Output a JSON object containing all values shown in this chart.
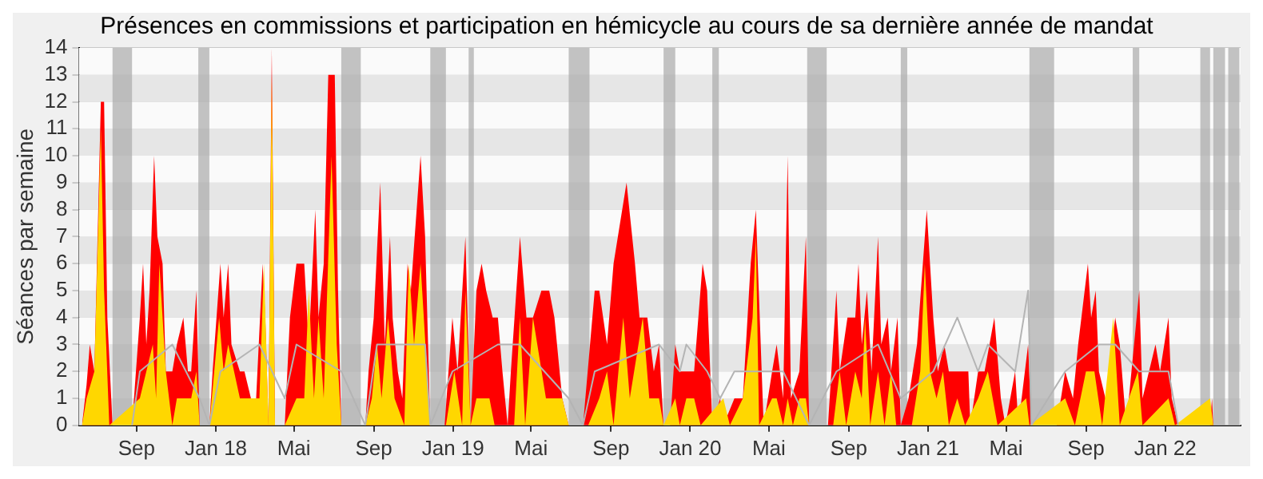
{
  "chart_data": {
    "type": "area",
    "title": "Présences en commissions et participation en hémicycle au cours de sa dernière année de mandat",
    "ylabel": "Séances par semaine",
    "xlim": [
      "2017-06-04",
      "2022-04-27"
    ],
    "ylim": [
      0,
      14
    ],
    "yticks": [
      0,
      1,
      2,
      3,
      4,
      5,
      6,
      7,
      8,
      9,
      10,
      11,
      12,
      13,
      14
    ],
    "xticks": [
      {
        "value": "2017-09-01",
        "label": "Sep"
      },
      {
        "value": "2018-01-01",
        "label": "Jan 18"
      },
      {
        "value": "2018-05-01",
        "label": "Mai"
      },
      {
        "value": "2018-09-01",
        "label": "Sep"
      },
      {
        "value": "2019-01-01",
        "label": "Jan 19"
      },
      {
        "value": "2019-05-01",
        "label": "Mai"
      },
      {
        "value": "2019-09-01",
        "label": "Sep"
      },
      {
        "value": "2020-01-01",
        "label": "Jan 20"
      },
      {
        "value": "2020-05-01",
        "label": "Mai"
      },
      {
        "value": "2020-09-01",
        "label": "Sep"
      },
      {
        "value": "2021-01-01",
        "label": "Jan 21"
      },
      {
        "value": "2021-05-01",
        "label": "Mai"
      },
      {
        "value": "2021-09-01",
        "label": "Sep"
      },
      {
        "value": "2022-01-01",
        "label": "Jan 22"
      }
    ],
    "grid": true,
    "legend": false,
    "bands": [
      {
        "axis": "x",
        "from": "2017-07-26",
        "to": "2017-08-25",
        "color": "#aaaaaa"
      },
      {
        "axis": "x",
        "from": "2017-12-05",
        "to": "2017-12-22",
        "color": "#aaaaaa"
      },
      {
        "axis": "x",
        "from": "2018-07-13",
        "to": "2018-08-12",
        "color": "#aaaaaa"
      },
      {
        "axis": "x",
        "from": "2018-11-27",
        "to": "2018-12-21",
        "color": "#aaaaaa"
      },
      {
        "axis": "x",
        "from": "2019-01-25",
        "to": "2019-02-02",
        "color": "#aaaaaa"
      },
      {
        "axis": "x",
        "from": "2019-06-28",
        "to": "2019-07-30",
        "color": "#aaaaaa"
      },
      {
        "axis": "x",
        "from": "2019-11-21",
        "to": "2019-12-09",
        "color": "#aaaaaa"
      },
      {
        "axis": "x",
        "from": "2020-02-04",
        "to": "2020-02-14",
        "color": "#aaaaaa"
      },
      {
        "axis": "x",
        "from": "2020-06-29",
        "to": "2020-07-29",
        "color": "#aaaaaa"
      },
      {
        "axis": "x",
        "from": "2020-11-20",
        "to": "2020-11-30",
        "color": "#aaaaaa"
      },
      {
        "axis": "x",
        "from": "2021-06-06",
        "to": "2021-07-14",
        "color": "#aaaaaa"
      },
      {
        "axis": "x",
        "from": "2021-11-12",
        "to": "2021-11-22",
        "color": "#aaaaaa"
      },
      {
        "axis": "x",
        "from": "2022-02-24",
        "to": "2022-03-11",
        "color": "#aaaaaa"
      },
      {
        "axis": "x",
        "from": "2022-03-16",
        "to": "2022-04-03",
        "color": "#aaaaaa"
      },
      {
        "axis": "x",
        "from": "2022-04-08",
        "to": "2022-04-25",
        "color": "#aaaaaa"
      }
    ],
    "series": [
      {
        "type": "area",
        "color": "#ff0000",
        "x": [
          "2017-06-09",
          "2017-06-16",
          "2017-06-21",
          "2017-06-28",
          "2017-07-03",
          "2017-07-08",
          "2017-07-13",
          "2017-07-18",
          "2017-07-26",
          "2017-08-25",
          "2017-09-06",
          "2017-09-11",
          "2017-09-16",
          "2017-09-21",
          "2017-09-28",
          "2017-10-03",
          "2017-10-11",
          "2017-10-16",
          "2017-10-26",
          "2017-11-02",
          "2017-11-12",
          "2017-11-19",
          "2017-11-24",
          "2017-12-02",
          "2017-12-07",
          "2017-12-22",
          "2017-12-27",
          "2018-01-08",
          "2018-01-13",
          "2018-01-20",
          "2018-01-25",
          "2018-02-07",
          "2018-02-14",
          "2018-02-24",
          "2018-03-04",
          "2018-03-14",
          "2018-03-18",
          "2018-03-23",
          "2018-03-28",
          "2018-04-02",
          "2018-04-17",
          "2018-04-25",
          "2018-05-05",
          "2018-05-17",
          "2018-05-24",
          "2018-06-03",
          "2018-06-08",
          "2018-06-16",
          "2018-06-23",
          "2018-07-03",
          "2018-07-08",
          "2018-07-13",
          "2018-08-19",
          "2018-08-24",
          "2018-09-01",
          "2018-09-11",
          "2018-09-18",
          "2018-09-26",
          "2018-09-30",
          "2018-10-08",
          "2018-10-15",
          "2018-10-23",
          "2018-10-28",
          "2018-11-12",
          "2018-11-19",
          "2018-11-27",
          "2018-12-19",
          "2018-12-31",
          "2019-01-08",
          "2019-01-20",
          "2019-01-28",
          "2019-02-06",
          "2019-02-14",
          "2019-02-21",
          "2019-03-03",
          "2019-03-11",
          "2019-03-18",
          "2019-03-26",
          "2019-03-31",
          "2019-04-14",
          "2019-04-24",
          "2019-05-04",
          "2019-05-17",
          "2019-05-29",
          "2019-06-06",
          "2019-06-18",
          "2019-06-28",
          "2019-07-20",
          "2019-08-07",
          "2019-08-14",
          "2019-08-26",
          "2019-09-05",
          "2019-09-25",
          "2019-10-08",
          "2019-10-15",
          "2019-10-27",
          "2019-11-06",
          "2019-11-14",
          "2019-11-21",
          "2019-12-01",
          "2019-12-09",
          "2019-12-16",
          "2020-01-07",
          "2020-01-20",
          "2020-01-27",
          "2020-02-04",
          "2020-02-16",
          "2020-02-21",
          "2020-03-09",
          "2020-03-22",
          "2020-04-03",
          "2020-04-11",
          "2020-04-23",
          "2020-05-06",
          "2020-05-13",
          "2020-05-23",
          "2020-05-30",
          "2020-06-04",
          "2020-06-17",
          "2020-06-27",
          "2020-07-02",
          "2020-07-31",
          "2020-08-13",
          "2020-08-18",
          "2020-08-30",
          "2020-09-11",
          "2020-09-16",
          "2020-09-21",
          "2020-09-29",
          "2020-10-06",
          "2020-10-16",
          "2020-10-21",
          "2020-10-31",
          "2020-11-05",
          "2020-11-15",
          "2020-11-20",
          "2020-12-02",
          "2020-12-15",
          "2020-12-30",
          "2021-01-09",
          "2021-01-16",
          "2021-01-26",
          "2021-02-02",
          "2021-02-15",
          "2021-03-04",
          "2021-03-07",
          "2021-03-19",
          "2021-03-29",
          "2021-04-13",
          "2021-04-23",
          "2021-04-30",
          "2021-05-15",
          "2021-05-20",
          "2021-06-04",
          "2021-06-09",
          "2021-07-18",
          "2021-07-31",
          "2021-08-12",
          "2021-08-20",
          "2021-09-04",
          "2021-09-09",
          "2021-09-16",
          "2021-09-21",
          "2021-10-01",
          "2021-10-16",
          "2021-10-23",
          "2021-11-02",
          "2021-11-22",
          "2021-11-27",
          "2021-12-17",
          "2021-12-24",
          "2022-01-06",
          "2022-01-11",
          "2022-01-21",
          "2022-03-11",
          "2022-03-14",
          "2022-03-16",
          "2022-04-25"
        ],
        "values": [
          0,
          1.5,
          3,
          2,
          7,
          12,
          12,
          4,
          0,
          0,
          4,
          6,
          3,
          5,
          10,
          7,
          6,
          2,
          2,
          3,
          4,
          2,
          2,
          5,
          0,
          0,
          2,
          6,
          4,
          6,
          3,
          2,
          2,
          1,
          1,
          6,
          4,
          0,
          14,
          0,
          0,
          4,
          6,
          6,
          3,
          8,
          4,
          6,
          13,
          13,
          5,
          0,
          0,
          2,
          4,
          9,
          3,
          7,
          4,
          2,
          1,
          6,
          5,
          10,
          7,
          0,
          0,
          4,
          2,
          7,
          0,
          5,
          6,
          5,
          4,
          4,
          2,
          0,
          2,
          7,
          4,
          4,
          5,
          5,
          4,
          1,
          0,
          0,
          5,
          5,
          3,
          6,
          9,
          6,
          4,
          4,
          2,
          3,
          0,
          0,
          3,
          2,
          2,
          6,
          5,
          0,
          1,
          0,
          1,
          1,
          6,
          8,
          0,
          2,
          3,
          1,
          10,
          1,
          2,
          7,
          0,
          0,
          5,
          2,
          4,
          4,
          6,
          3,
          5,
          2,
          7,
          3,
          4,
          2,
          4,
          0,
          1,
          3,
          8,
          4,
          2,
          3,
          2,
          2,
          2,
          0,
          2,
          2,
          4,
          1,
          0,
          2,
          0,
          3,
          0,
          0,
          2,
          1,
          3,
          6,
          4,
          5,
          2,
          1,
          4,
          3,
          0,
          5,
          1,
          3,
          2,
          4,
          1,
          0,
          0,
          1,
          0,
          0
        ]
      },
      {
        "type": "area",
        "color": "#ffd700",
        "x": [
          "2017-06-09",
          "2017-06-16",
          "2017-06-28",
          "2017-07-08",
          "2017-07-13",
          "2017-07-21",
          "2017-09-06",
          "2017-09-16",
          "2017-09-26",
          "2017-10-01",
          "2017-10-06",
          "2017-10-16",
          "2017-10-26",
          "2017-11-02",
          "2017-11-24",
          "2017-12-02",
          "2017-12-07",
          "2017-12-22",
          "2018-01-06",
          "2018-01-13",
          "2018-01-20",
          "2018-02-07",
          "2018-02-19",
          "2018-03-09",
          "2018-03-16",
          "2018-03-23",
          "2018-03-28",
          "2018-04-02",
          "2018-04-17",
          "2018-05-05",
          "2018-05-17",
          "2018-05-24",
          "2018-06-01",
          "2018-06-08",
          "2018-06-16",
          "2018-06-28",
          "2018-07-06",
          "2018-07-13",
          "2018-08-19",
          "2018-08-29",
          "2018-09-06",
          "2018-09-13",
          "2018-09-23",
          "2018-10-03",
          "2018-10-18",
          "2018-10-25",
          "2018-11-02",
          "2018-11-12",
          "2018-11-22",
          "2018-11-27",
          "2018-12-21",
          "2019-01-03",
          "2019-01-15",
          "2019-01-20",
          "2019-01-28",
          "2019-02-06",
          "2019-02-26",
          "2019-03-06",
          "2019-04-05",
          "2019-04-14",
          "2019-04-22",
          "2019-05-04",
          "2019-05-24",
          "2019-06-18",
          "2019-06-28",
          "2019-07-28",
          "2019-08-14",
          "2019-08-26",
          "2019-09-05",
          "2019-09-20",
          "2019-09-30",
          "2019-10-20",
          "2019-10-30",
          "2019-11-14",
          "2019-11-21",
          "2019-12-09",
          "2019-12-16",
          "2019-12-26",
          "2020-01-07",
          "2020-01-17",
          "2020-02-21",
          "2020-03-02",
          "2020-03-22",
          "2020-04-06",
          "2020-04-11",
          "2020-04-16",
          "2020-05-06",
          "2020-05-13",
          "2020-05-23",
          "2020-05-30",
          "2020-06-07",
          "2020-06-17",
          "2020-06-27",
          "2020-07-02",
          "2020-08-08",
          "2020-08-18",
          "2020-08-28",
          "2020-09-11",
          "2020-09-21",
          "2020-09-26",
          "2020-10-04",
          "2020-10-16",
          "2020-10-26",
          "2020-11-05",
          "2020-11-13",
          "2020-12-07",
          "2020-12-20",
          "2020-12-27",
          "2021-01-04",
          "2021-01-14",
          "2021-01-24",
          "2021-02-02",
          "2021-02-15",
          "2021-02-27",
          "2021-03-19",
          "2021-04-03",
          "2021-04-18",
          "2021-06-01",
          "2021-06-06",
          "2021-07-31",
          "2021-08-15",
          "2021-09-01",
          "2021-09-14",
          "2021-09-26",
          "2021-10-13",
          "2021-10-23",
          "2021-11-20",
          "2021-11-27",
          "2022-01-06",
          "2022-01-16",
          "2022-03-11",
          "2022-03-16"
        ],
        "values": [
          0,
          1,
          2,
          11,
          5,
          0,
          1,
          2,
          3,
          1,
          6,
          2,
          0,
          1,
          1,
          2,
          0,
          0,
          4,
          2,
          3,
          1,
          1,
          1,
          6,
          0,
          13,
          0,
          0,
          1,
          1,
          5,
          1,
          4,
          1,
          10,
          3,
          0,
          0,
          1,
          3,
          1,
          4,
          1,
          0,
          6,
          3,
          6,
          2,
          0,
          0,
          2,
          0,
          5,
          0,
          1,
          1,
          0,
          0,
          4,
          0,
          4,
          1,
          1,
          0,
          0,
          1,
          2,
          0,
          4,
          1,
          4,
          1,
          1,
          0,
          1,
          0,
          1,
          1,
          0,
          1,
          0,
          1,
          4,
          7,
          0,
          1,
          1,
          0,
          1,
          0,
          1,
          1,
          0,
          0,
          2,
          0,
          2,
          1,
          4,
          0,
          2,
          0,
          2,
          0,
          0,
          2,
          6,
          2,
          1,
          2,
          0,
          1,
          0,
          1,
          2,
          0,
          1,
          0,
          1,
          0,
          2,
          2,
          0,
          4,
          0,
          2,
          0,
          1,
          0,
          1,
          0
        ]
      },
      {
        "type": "line",
        "color": "#b4b4b4",
        "x": [
          "2017-08-25",
          "2017-09-06",
          "2017-10-26",
          "2017-12-07",
          "2017-12-22",
          "2018-01-08",
          "2018-03-09",
          "2018-04-17",
          "2018-05-05",
          "2018-07-13",
          "2018-08-19",
          "2018-09-06",
          "2018-11-19",
          "2018-11-27",
          "2018-12-31",
          "2019-03-11",
          "2019-04-14",
          "2019-06-28",
          "2019-07-20",
          "2019-08-07",
          "2019-11-14",
          "2019-12-16",
          "2019-12-26",
          "2020-01-27",
          "2020-02-16",
          "2020-03-09",
          "2020-04-11",
          "2020-05-23",
          "2020-07-02",
          "2020-08-13",
          "2020-10-16",
          "2020-11-20",
          "2021-01-09",
          "2021-02-15",
          "2021-03-19",
          "2021-04-03",
          "2021-05-15",
          "2021-06-04",
          "2021-06-09",
          "2021-07-31",
          "2021-09-21",
          "2021-10-16",
          "2021-11-22",
          "2022-01-06",
          "2022-01-21"
        ],
        "values": [
          0,
          2,
          3,
          1,
          0,
          2,
          3,
          1,
          3,
          2,
          0,
          3,
          3,
          0,
          2,
          3,
          3,
          1,
          0,
          2,
          3,
          2,
          3,
          2,
          1,
          2,
          2,
          2,
          0,
          2,
          3,
          1,
          2,
          4,
          2,
          3,
          2,
          5,
          0,
          2,
          3,
          3,
          2,
          2,
          0
        ]
      }
    ]
  }
}
